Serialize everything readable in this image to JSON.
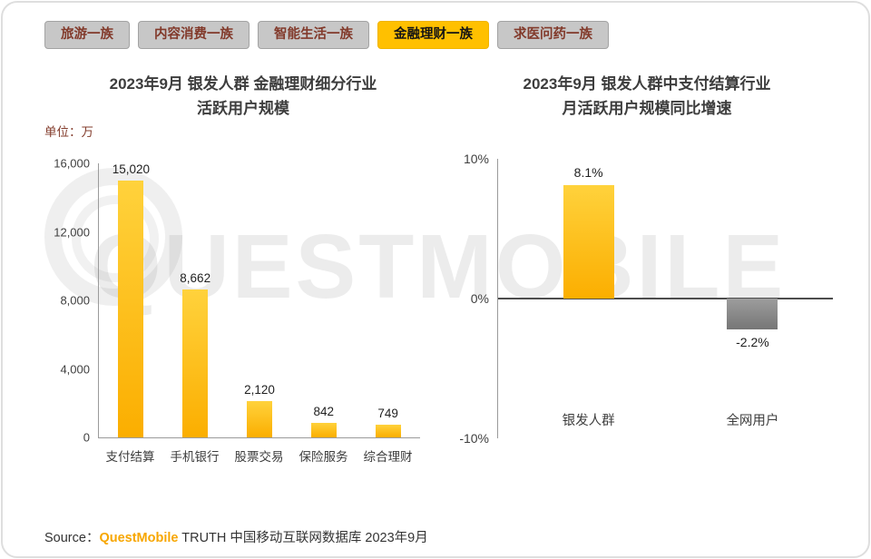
{
  "tabs": [
    {
      "label": "旅游一族",
      "active": false
    },
    {
      "label": "内容消费一族",
      "active": false
    },
    {
      "label": "智能生活一族",
      "active": false
    },
    {
      "label": "金融理财一族",
      "active": true
    },
    {
      "label": "求医问药一族",
      "active": false
    }
  ],
  "chart_data": [
    {
      "type": "bar",
      "title_line1": "2023年9月 银发人群 金融理财细分行业",
      "title_line2": "活跃用户规模",
      "unit": "单位：万",
      "categories": [
        "支付结算",
        "手机银行",
        "股票交易",
        "保险服务",
        "综合理财"
      ],
      "values": [
        15020,
        8662,
        2120,
        842,
        749
      ],
      "data_labels": [
        "15,020",
        "8,662",
        "2,120",
        "842",
        "749"
      ],
      "ylim": [
        0,
        16000
      ],
      "yticks": [
        "16,000",
        "12,000",
        "8,000",
        "4,000",
        "0"
      ],
      "grid": false,
      "legend": false,
      "bar_color_top": "#FFD23C",
      "bar_color_bottom": "#FBAE00"
    },
    {
      "type": "bar",
      "title_line1": "2023年9月 银发人群中支付结算行业",
      "title_line2": "月活跃用户规模同比增速",
      "categories": [
        "银发人群",
        "全网用户"
      ],
      "values": [
        8.1,
        -2.2
      ],
      "data_labels": [
        "8.1%",
        "-2.2%"
      ],
      "ylim": [
        -10,
        10
      ],
      "yticks": [
        "10%",
        "0%",
        "-10%"
      ],
      "grid": false,
      "legend": false,
      "series_colors": [
        "#FFC11E",
        "#8C8C8C"
      ]
    }
  ],
  "watermark": {
    "text": "QUESTMOBILE"
  },
  "source": {
    "prefix": "Source：",
    "brand": "QuestMobile",
    "suffix": " TRUTH 中国移动互联网数据库 2023年9月"
  },
  "colors": {
    "accent": "#FFC000",
    "bar_yellow": "#FFC11E",
    "bar_gray": "#8C8C8C",
    "tab_inactive_bg": "#C7C7C7",
    "tab_text": "#823A2B",
    "watermark_gray": "#E6E6E6"
  }
}
